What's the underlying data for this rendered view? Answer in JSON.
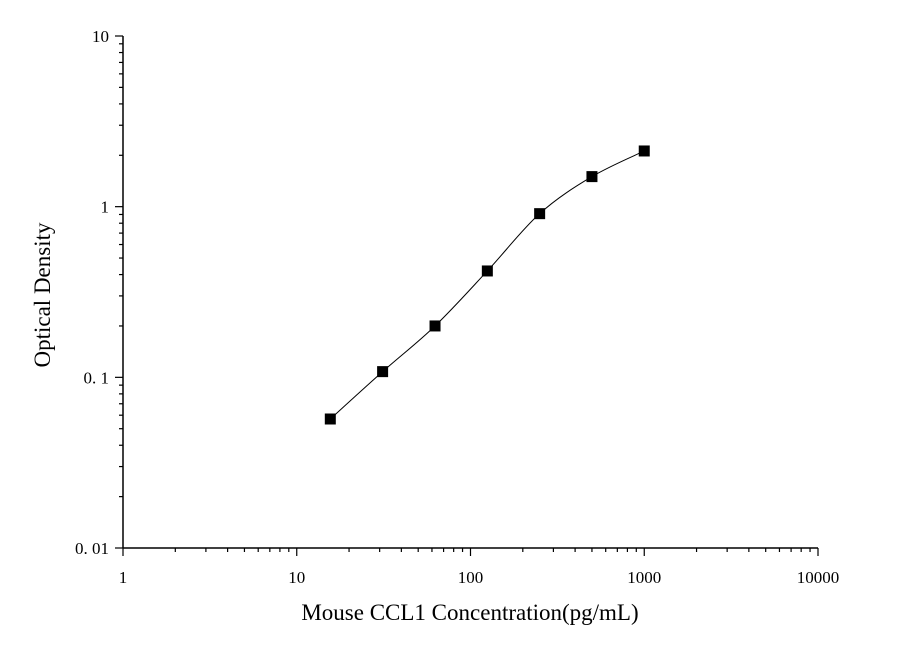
{
  "chart_data": {
    "type": "scatter",
    "x_scale": "log",
    "y_scale": "log",
    "xlabel": "Mouse CCL1 Concentration(pg/mL)",
    "ylabel": "Optical Density",
    "xlim": [
      1,
      10000
    ],
    "ylim": [
      0.01,
      10
    ],
    "x_ticks": [
      {
        "value": 1,
        "label": "1"
      },
      {
        "value": 10,
        "label": "10"
      },
      {
        "value": 100,
        "label": "100"
      },
      {
        "value": 1000,
        "label": "1000"
      },
      {
        "value": 10000,
        "label": "10000"
      }
    ],
    "y_ticks": [
      {
        "value": 0.01,
        "label": "0. 01"
      },
      {
        "value": 0.1,
        "label": "0. 1"
      },
      {
        "value": 1,
        "label": "1"
      },
      {
        "value": 10,
        "label": "10"
      }
    ],
    "grid": false,
    "series": [
      {
        "marker": "square",
        "line": "smooth",
        "color": "#000000",
        "x": [
          15.6,
          31.2,
          62.5,
          125,
          250,
          500,
          1000
        ],
        "y": [
          0.057,
          0.108,
          0.2,
          0.42,
          0.91,
          1.5,
          2.12
        ]
      }
    ]
  }
}
